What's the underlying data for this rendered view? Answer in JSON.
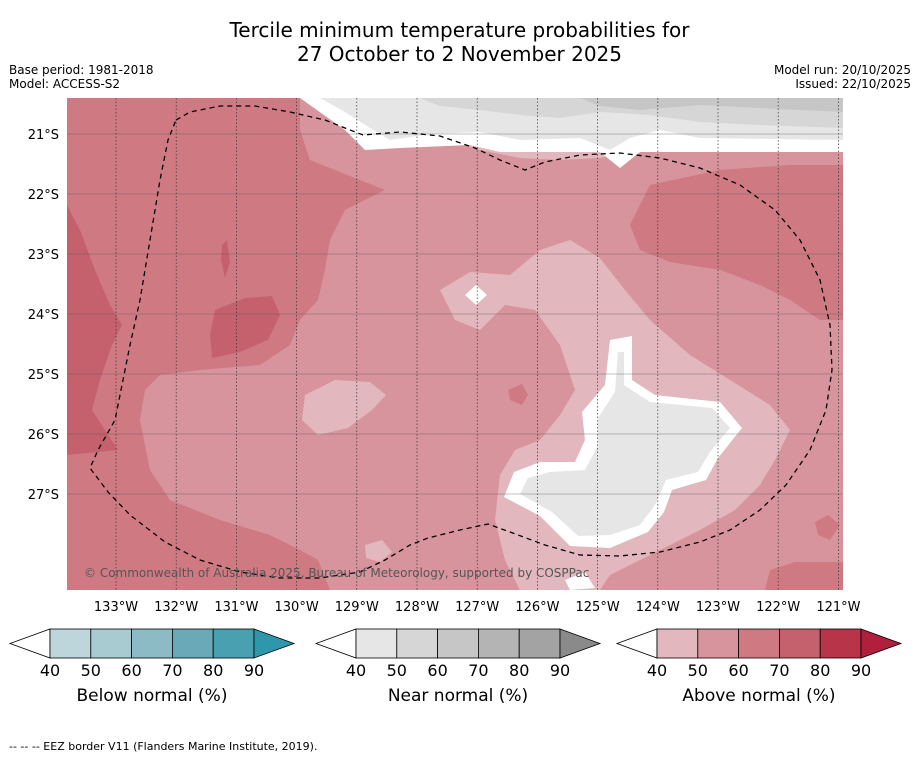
{
  "title_line1": "Tercile minimum temperature probabilities for",
  "title_line2": "27 October to 2 November 2025",
  "meta_left": [
    "Base period: 1981-2018",
    "Model: ACCESS-S2"
  ],
  "meta_right": [
    "Model run: 20/10/2025",
    "Issued: 22/10/2025"
  ],
  "copyright": "© Commonwealth of Australia 2025, Bureau of Meteorology, supported by COSPPac",
  "map": {
    "lon_labels": [
      "133°W",
      "132°W",
      "131°W",
      "130°W",
      "129°W",
      "128°W",
      "127°W",
      "126°W",
      "125°W",
      "124°W",
      "123°W",
      "122°W",
      "121°W"
    ],
    "lat_labels": [
      "21°S",
      "22°S",
      "23°S",
      "24°S",
      "25°S",
      "26°S",
      "27°S"
    ],
    "border_style": "dashed"
  },
  "colorbars": [
    {
      "title": "Below normal (%)",
      "ticks": [
        "40",
        "50",
        "60",
        "70",
        "80",
        "90"
      ],
      "colors": [
        "#ffffff",
        "#bcd6dc",
        "#a8cbd2",
        "#8dbbc5",
        "#6aa9b7",
        "#48a0b0",
        "#2f97ab"
      ]
    },
    {
      "title": "Near normal (%)",
      "ticks": [
        "40",
        "50",
        "60",
        "70",
        "80",
        "90"
      ],
      "colors": [
        "#ffffff",
        "#e6e6e6",
        "#d6d6d6",
        "#c6c6c6",
        "#b4b4b4",
        "#a3a3a3",
        "#8a8a8a"
      ]
    },
    {
      "title": "Above normal (%)",
      "ticks": [
        "40",
        "50",
        "60",
        "70",
        "80",
        "90"
      ],
      "colors": [
        "#ffffff",
        "#e2b7bd",
        "#d8949c",
        "#cf7a83",
        "#c5616c",
        "#b83448",
        "#b01f3c"
      ]
    }
  ],
  "footer": "--  --  -- EEZ border V11 (Flanders Marine Institute, 2019)."
}
